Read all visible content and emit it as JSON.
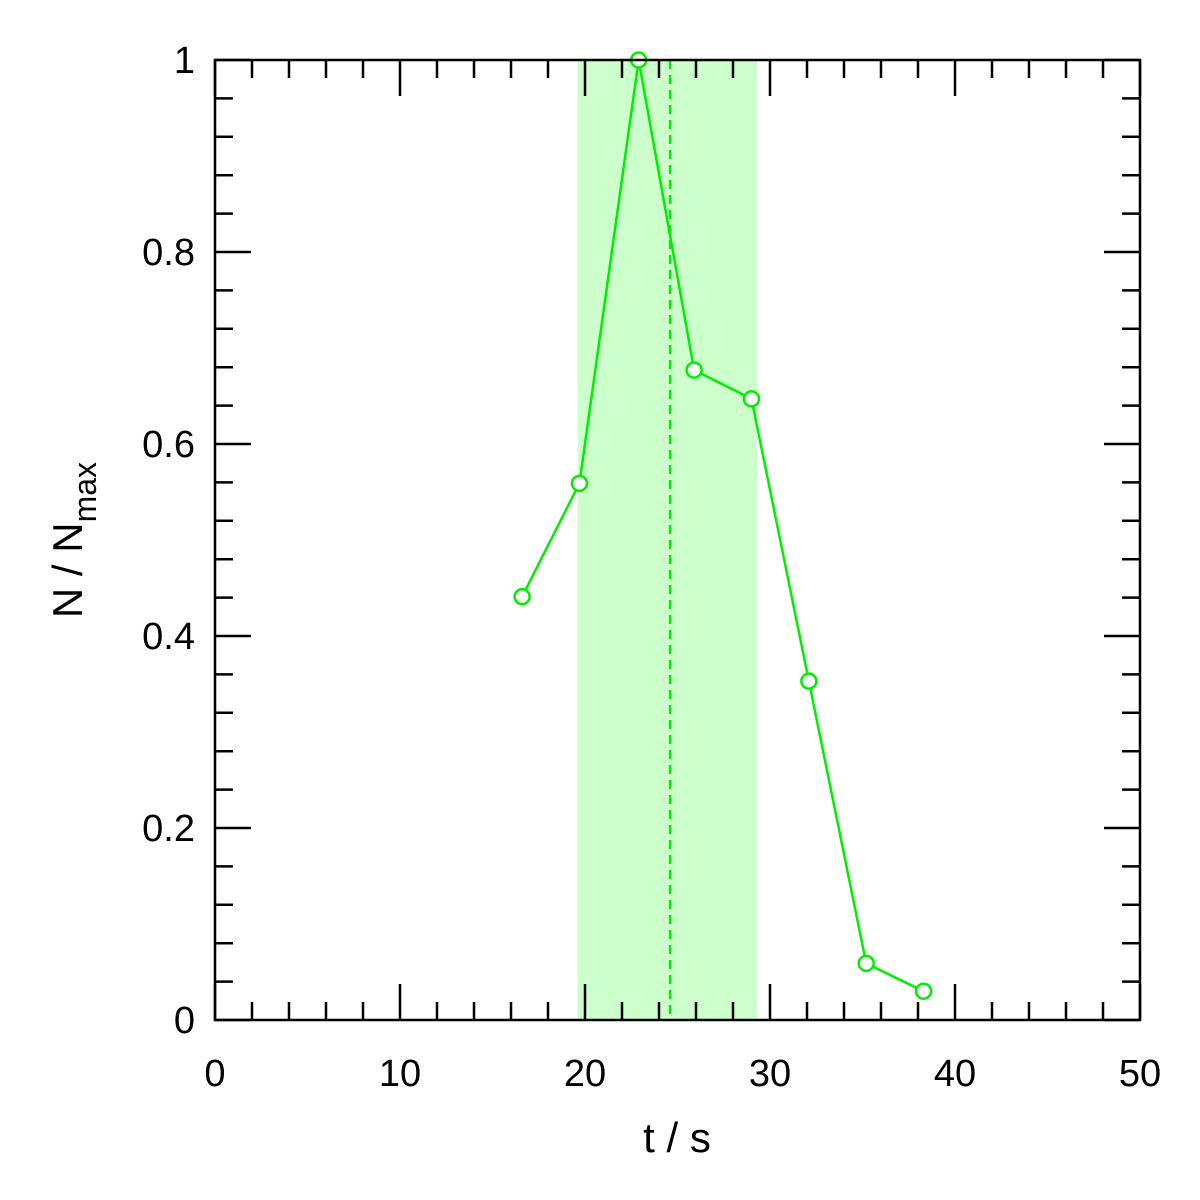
{
  "chart_data": {
    "type": "line",
    "xlabel": "t / s",
    "ylabel": {
      "main": "N / N",
      "subscript": "max"
    },
    "xlim": [
      0,
      50
    ],
    "ylim": [
      0,
      1
    ],
    "x_ticks": [
      0,
      10,
      20,
      30,
      40,
      50
    ],
    "x_tick_labels": [
      "0",
      "10",
      "20",
      "30",
      "40",
      "50"
    ],
    "x_minor_step": 2,
    "y_ticks": [
      0,
      0.2,
      0.4,
      0.6,
      0.8,
      1
    ],
    "y_tick_labels": [
      "0",
      "0.2",
      "0.4",
      "0.6",
      "0.8",
      "1"
    ],
    "y_minor_step": 0.04,
    "grid": false,
    "legend": false,
    "series": [
      {
        "color": "#00ee00",
        "marker": "open-circle",
        "x": [
          16.6,
          19.7,
          22.9,
          25.9,
          29.0,
          32.1,
          35.2,
          38.3
        ],
        "y": [
          0.441,
          0.559,
          1.0,
          0.677,
          0.647,
          0.353,
          0.059,
          0.03
        ]
      }
    ],
    "shaded_band": {
      "x_range": [
        19.6,
        29.3
      ],
      "color": "#ccffcc"
    },
    "vertical_line": {
      "x": 24.6,
      "style": "dashed",
      "color": "#00ee00"
    }
  }
}
